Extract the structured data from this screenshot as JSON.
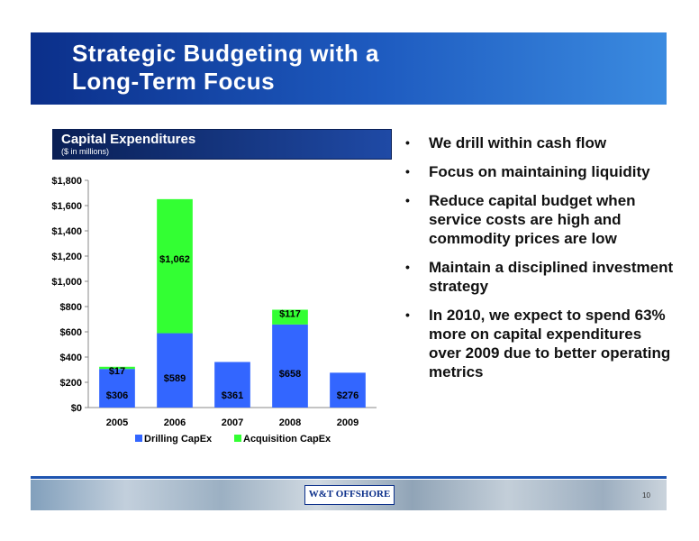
{
  "header": {
    "title_line1": "Strategic Budgeting with a",
    "title_line2": "Long-Term Focus"
  },
  "chart_panel": {
    "title": "Capital Expenditures",
    "subtitle": "($ in millions)"
  },
  "bullets": [
    "We drill within cash flow",
    "Focus on maintaining liquidity",
    "Reduce capital budget when service costs are high and commodity prices are low",
    "Maintain a disciplined investment strategy",
    "In 2010, we expect to spend 63% more on capital expenditures over 2009 due to better operating metrics"
  ],
  "footer": {
    "logo_text": "W&T OFFSHORE",
    "page_number": "10"
  },
  "colors": {
    "drilling": "#3366ff",
    "acquisition": "#33ff33",
    "header_dark": "#0b2f8a"
  },
  "chart_data": {
    "type": "bar",
    "stacked": true,
    "categories": [
      "2005",
      "2006",
      "2007",
      "2008",
      "2009"
    ],
    "series": [
      {
        "name": "Drilling CapEx",
        "values": [
          306,
          589,
          361,
          658,
          276
        ],
        "labels": [
          "$306",
          "$589",
          "$361",
          "$658",
          "$276"
        ],
        "color": "#3366ff"
      },
      {
        "name": "Acquisition CapEx",
        "values": [
          17,
          1062,
          0,
          117,
          0
        ],
        "labels": [
          "$17",
          "$1,062",
          "",
          "$117",
          ""
        ],
        "color": "#33ff33"
      }
    ],
    "y_ticks": [
      "$0",
      "$200",
      "$400",
      "$600",
      "$800",
      "$1,000",
      "$1,200",
      "$1,400",
      "$1,600",
      "$1,800"
    ],
    "ylim": [
      0,
      1800
    ],
    "legend": "bottom",
    "grid": false
  }
}
